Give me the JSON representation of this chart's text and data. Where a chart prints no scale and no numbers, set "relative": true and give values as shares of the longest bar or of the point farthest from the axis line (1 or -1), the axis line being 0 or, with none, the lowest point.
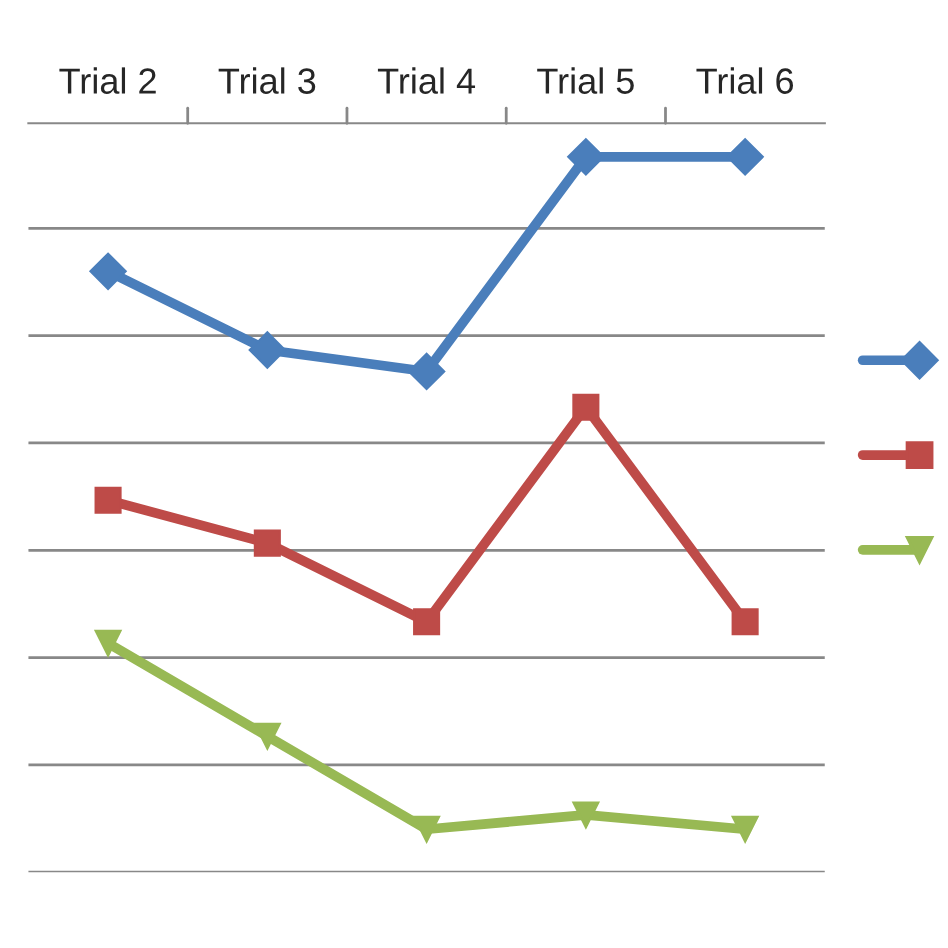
{
  "chart_data": {
    "type": "line",
    "relative": true,
    "categories": [
      "Trial 2",
      "Trial 3",
      "Trial 4",
      "Trial 5",
      "Trial 6"
    ],
    "series": [
      {
        "color": "#4a7ebb",
        "marker": "diamond",
        "values": [
          0.84,
          0.73,
          0.7,
          1,
          1
        ]
      },
      {
        "color": "#be4b48",
        "marker": "square",
        "values": [
          0.52,
          0.46,
          0.35,
          0.65,
          0.35
        ]
      },
      {
        "color": "#98b954",
        "marker": "triangle",
        "values": [
          0.32,
          0.19,
          0.06,
          0.08,
          0.06
        ]
      }
    ],
    "grid": "y",
    "line_style": "solid"
  }
}
